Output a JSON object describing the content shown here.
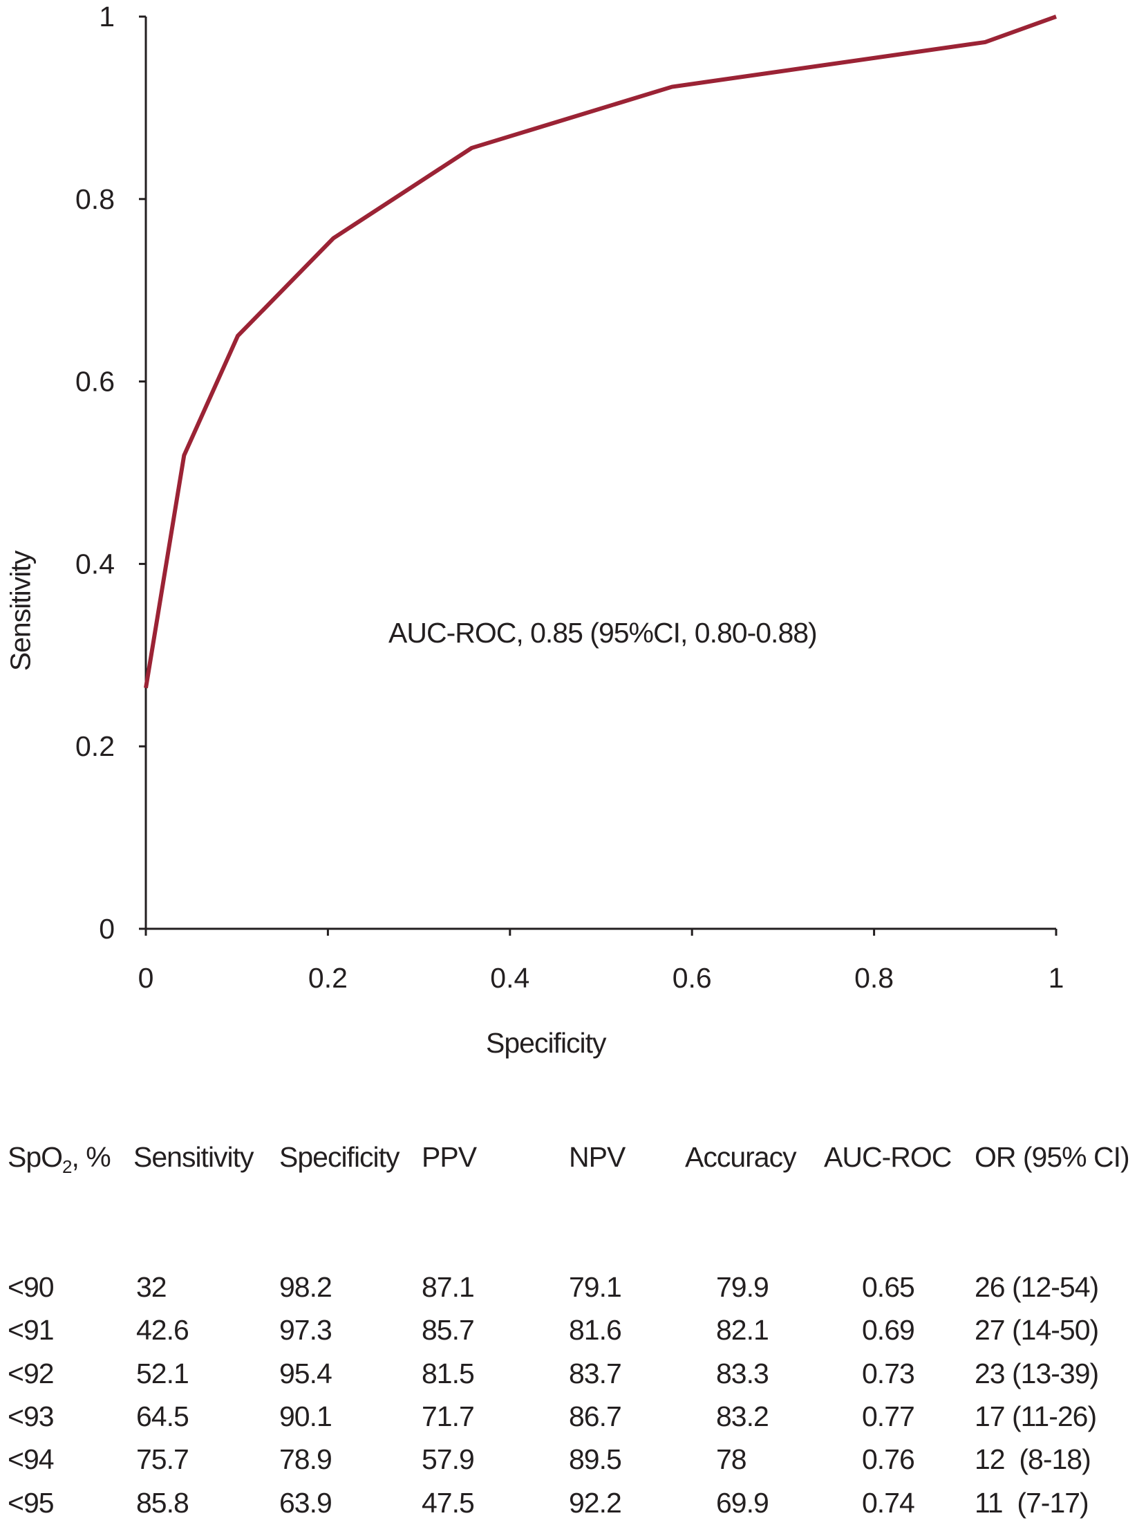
{
  "chart_data": {
    "type": "line",
    "xlabel": "Specificity",
    "ylabel": "Sensitivity",
    "xlim": [
      0,
      1
    ],
    "ylim": [
      0,
      1
    ],
    "x_ticks": [
      "0",
      "0.2",
      "0.4",
      "0.6",
      "0.8",
      "1"
    ],
    "y_ticks": [
      "0",
      "0.2",
      "0.4",
      "0.6",
      "0.8",
      "1"
    ],
    "grid": false,
    "annotation": "AUC-ROC, 0.85 (95%CI, 0.80-0.88)",
    "line_color": "#9b2335",
    "series": [
      {
        "x": [
          0,
          0.042,
          0.101,
          0.206,
          0.358,
          0.578,
          0.922,
          1
        ],
        "y": [
          0.264,
          0.519,
          0.65,
          0.757,
          0.856,
          0.923,
          0.972,
          1
        ]
      }
    ]
  },
  "table": {
    "headers": [
      "SpO",
      "Sensitivity",
      "Specificity",
      "PPV",
      "NPV",
      "Accuracy",
      "AUC-ROC",
      "OR (95% CI)"
    ],
    "header_first_sub": "2",
    "header_first_suffix": ", %",
    "rows": [
      [
        "<90",
        "32",
        "98.2",
        "87.1",
        "79.1",
        "79.9",
        "0.65",
        "26 (12-54)"
      ],
      [
        "<91",
        "42.6",
        "97.3",
        "85.7",
        "81.6",
        "82.1",
        "0.69",
        "27 (14-50)"
      ],
      [
        "<92",
        "52.1",
        "95.4",
        "81.5",
        "83.7",
        "83.3",
        "0.73",
        "23 (13-39)"
      ],
      [
        "<93",
        "64.5",
        "90.1",
        "71.7",
        "86.7",
        "83.2",
        "0.77",
        "17 (11-26)"
      ],
      [
        "<94",
        "75.7",
        "78.9",
        "57.9",
        "89.5",
        "78",
        "0.76",
        "12  (8-18)"
      ],
      [
        "<95",
        "85.8",
        "63.9",
        "47.5",
        "92.2",
        "69.9",
        "0.74",
        "11  (7-17)"
      ]
    ]
  }
}
